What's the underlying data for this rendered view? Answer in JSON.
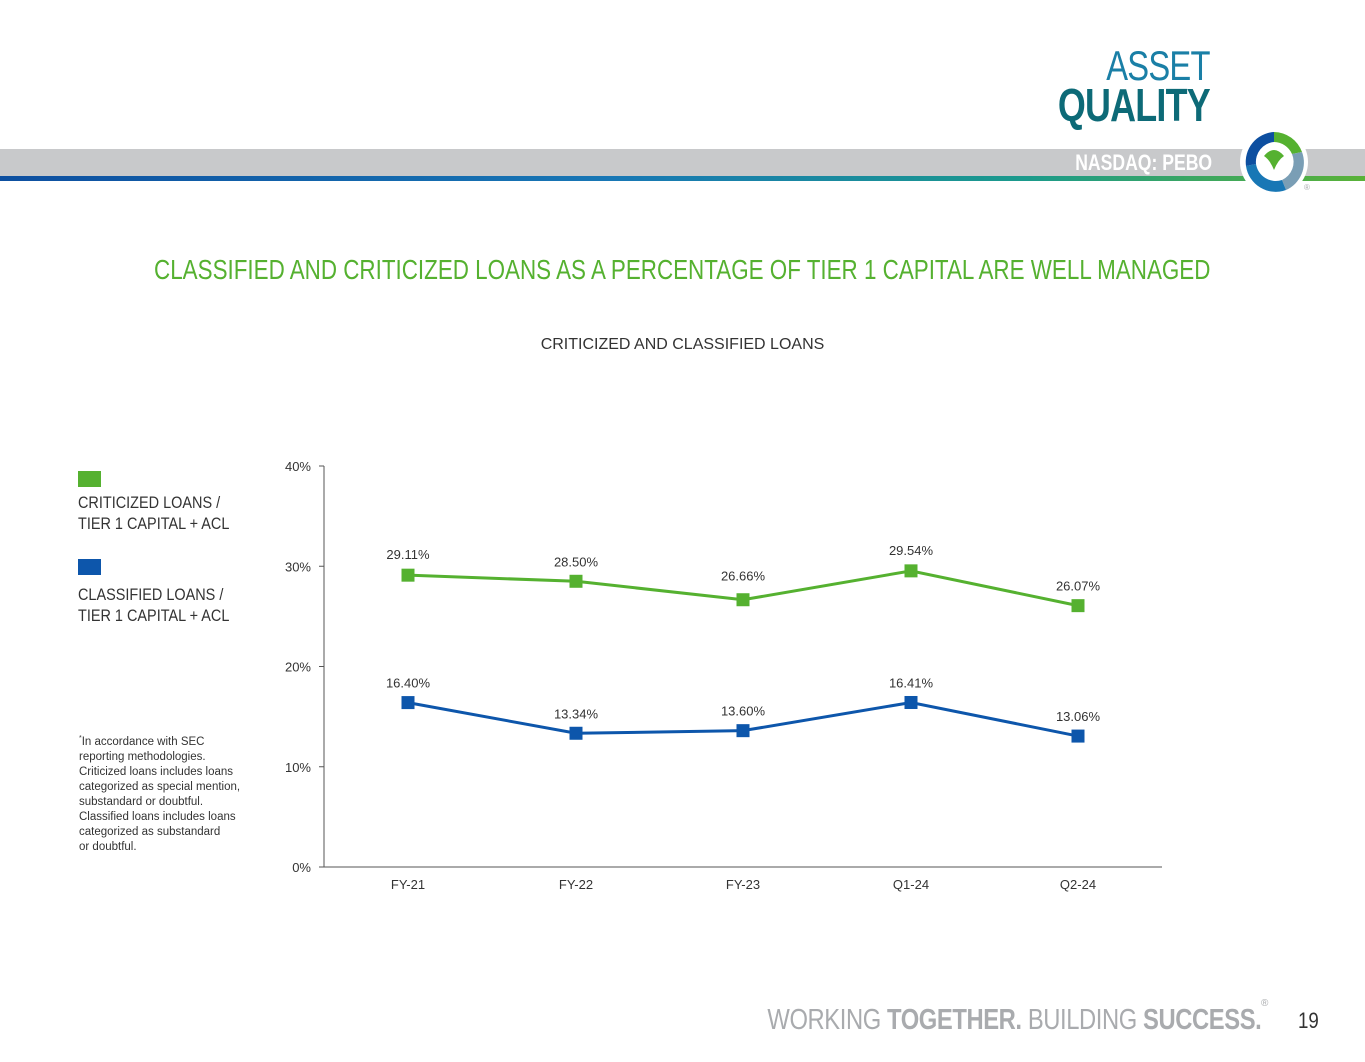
{
  "header": {
    "title_line1": "ASSET",
    "title_line2": "QUALITY",
    "ticker": "NASDAQ: PEBO",
    "logo_registered": "®"
  },
  "headline": "CLASSIFIED AND CRITICIZED LOANS AS A PERCENTAGE OF TIER 1 CAPITAL ARE WELL MANAGED",
  "legend": [
    {
      "label_line1": "CRITICIZED LOANS /",
      "label_line2": "TIER 1 CAPITAL + ACL",
      "color": "#55b130"
    },
    {
      "label_line1": "CLASSIFIED LOANS /",
      "label_line2": "TIER 1 CAPITAL + ACL",
      "color": "#0d56ab"
    }
  ],
  "footnote": {
    "marker": "*",
    "lines": [
      "In accordance with SEC",
      "reporting methodologies.",
      "Criticized loans includes loans",
      "categorized as special mention,",
      "substandard or doubtful.",
      "Classified loans includes loans",
      "categorized as substandard",
      "or doubtful."
    ]
  },
  "chart_data": {
    "type": "line",
    "title": "CRITICIZED AND CLASSIFIED LOANS",
    "categories": [
      "FY-21",
      "FY-22",
      "FY-23",
      "Q1-24",
      "Q2-24"
    ],
    "series": [
      {
        "name": "CRITICIZED LOANS / TIER 1 CAPITAL + ACL",
        "color": "#55b130",
        "values": [
          29.11,
          28.5,
          26.66,
          29.54,
          26.07
        ],
        "labels": [
          "29.11%",
          "28.50%",
          "26.66%",
          "29.54%",
          "26.07%"
        ]
      },
      {
        "name": "CLASSIFIED LOANS / TIER 1 CAPITAL + ACL",
        "color": "#0d56ab",
        "values": [
          16.4,
          13.34,
          13.6,
          16.41,
          13.06
        ],
        "labels": [
          "16.40%",
          "13.34%",
          "13.60%",
          "16.41%",
          "13.06%"
        ]
      }
    ],
    "yticks": [
      "0%",
      "10%",
      "20%",
      "30%",
      "40%"
    ],
    "ytick_values": [
      0,
      10,
      20,
      30,
      40
    ],
    "ylim": [
      0,
      40
    ],
    "xlabel": "",
    "ylabel": "",
    "legend_position": "left"
  },
  "footer": {
    "tagline_part1": "WORKING ",
    "tagline_part2": "TOGETHER.",
    "tagline_part3": " BUILDING ",
    "tagline_part4": "SUCCESS.",
    "registered": "®",
    "page_number": "19"
  }
}
